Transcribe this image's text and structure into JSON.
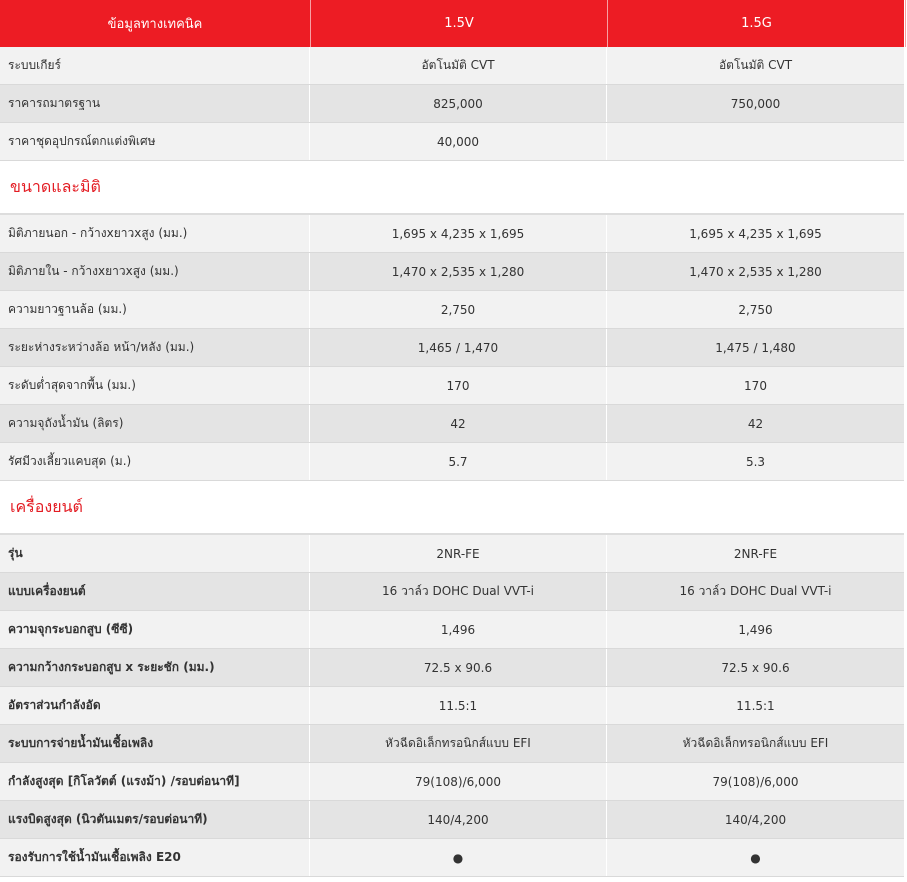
{
  "header": {
    "col1": "ข้อมูลทางเทคนิค",
    "col2": "1.5V",
    "col3": "1.5G"
  },
  "accent": "#ed1c24",
  "group0": [
    {
      "label": "ระบบเกียร์",
      "v": "อัตโนมัติ CVT",
      "g": "อัตโนมัติ CVT"
    },
    {
      "label": "ราคารถมาตรฐาน",
      "v": "825,000",
      "g": "750,000"
    },
    {
      "label": "ราคาชุดอุปกรณ์ตกแต่งพิเศษ",
      "v": "40,000",
      "g": ""
    }
  ],
  "sections": [
    {
      "title": "ขนาดและมิติ",
      "rows": [
        {
          "label": "มิติภายนอก - กว้างxยาวxสูง (มม.)",
          "v": "1,695 x 4,235 x 1,695",
          "g": "1,695 x 4,235 x 1,695"
        },
        {
          "label": "มิติภายใน - กว้างxยาวxสูง (มม.)",
          "v": "1,470 x 2,535 x 1,280",
          "g": "1,470 x 2,535 x 1,280"
        },
        {
          "label": "ความยาวฐานล้อ (มม.)",
          "v": "2,750",
          "g": "2,750"
        },
        {
          "label": "ระยะห่างระหว่างล้อ หน้า/หลัง (มม.)",
          "v": "1,465 / 1,470",
          "g": "1,475 / 1,480"
        },
        {
          "label": "ระดับต่ำสุดจากพื้น (มม.)",
          "v": "170",
          "g": "170"
        },
        {
          "label": "ความจุถังน้ำมัน (ลิตร)",
          "v": "42",
          "g": "42"
        },
        {
          "label": "รัศมีวงเลี้ยวแคบสุด (ม.)",
          "v": "5.7",
          "g": "5.3"
        }
      ]
    },
    {
      "title": "เครื่องยนต์",
      "rows": [
        {
          "label": "รุ่น",
          "v": "2NR-FE",
          "g": "2NR-FE"
        },
        {
          "label": "แบบเครื่องยนต์",
          "v": "16 วาล์ว DOHC Dual VVT-i",
          "g": "16 วาล์ว DOHC Dual VVT-i"
        },
        {
          "label": "ความจุกระบอกสูบ (ซีซี)",
          "v": "1,496",
          "g": "1,496"
        },
        {
          "label": "ความกว้างกระบอกสูบ x ระยะชัก (มม.)",
          "v": "72.5 x 90.6",
          "g": "72.5 x 90.6"
        },
        {
          "label": "อัตราส่วนกำลังอัด",
          "v": "11.5:1",
          "g": "11.5:1"
        },
        {
          "label": "ระบบการจ่ายน้ำมันเชื้อเพลิง",
          "v": "หัวฉีดอิเล็กทรอนิกส์แบบ EFI",
          "g": "หัวฉีดอิเล็กทรอนิกส์แบบ EFI"
        },
        {
          "label": "กำลังสูงสุด [กิโลวัตต์ (แรงม้า) /รอบต่อนาที]",
          "v": "79(108)/6,000",
          "g": "79(108)/6,000"
        },
        {
          "label": "แรงบิดสูงสุด (นิวตันเมตร/รอบต่อนาที)",
          "v": "140/4,200",
          "g": "140/4,200"
        },
        {
          "label": "รองรับการใช้น้ำมันเชื้อเพลิง E20",
          "v": "●",
          "g": "●"
        }
      ]
    }
  ]
}
